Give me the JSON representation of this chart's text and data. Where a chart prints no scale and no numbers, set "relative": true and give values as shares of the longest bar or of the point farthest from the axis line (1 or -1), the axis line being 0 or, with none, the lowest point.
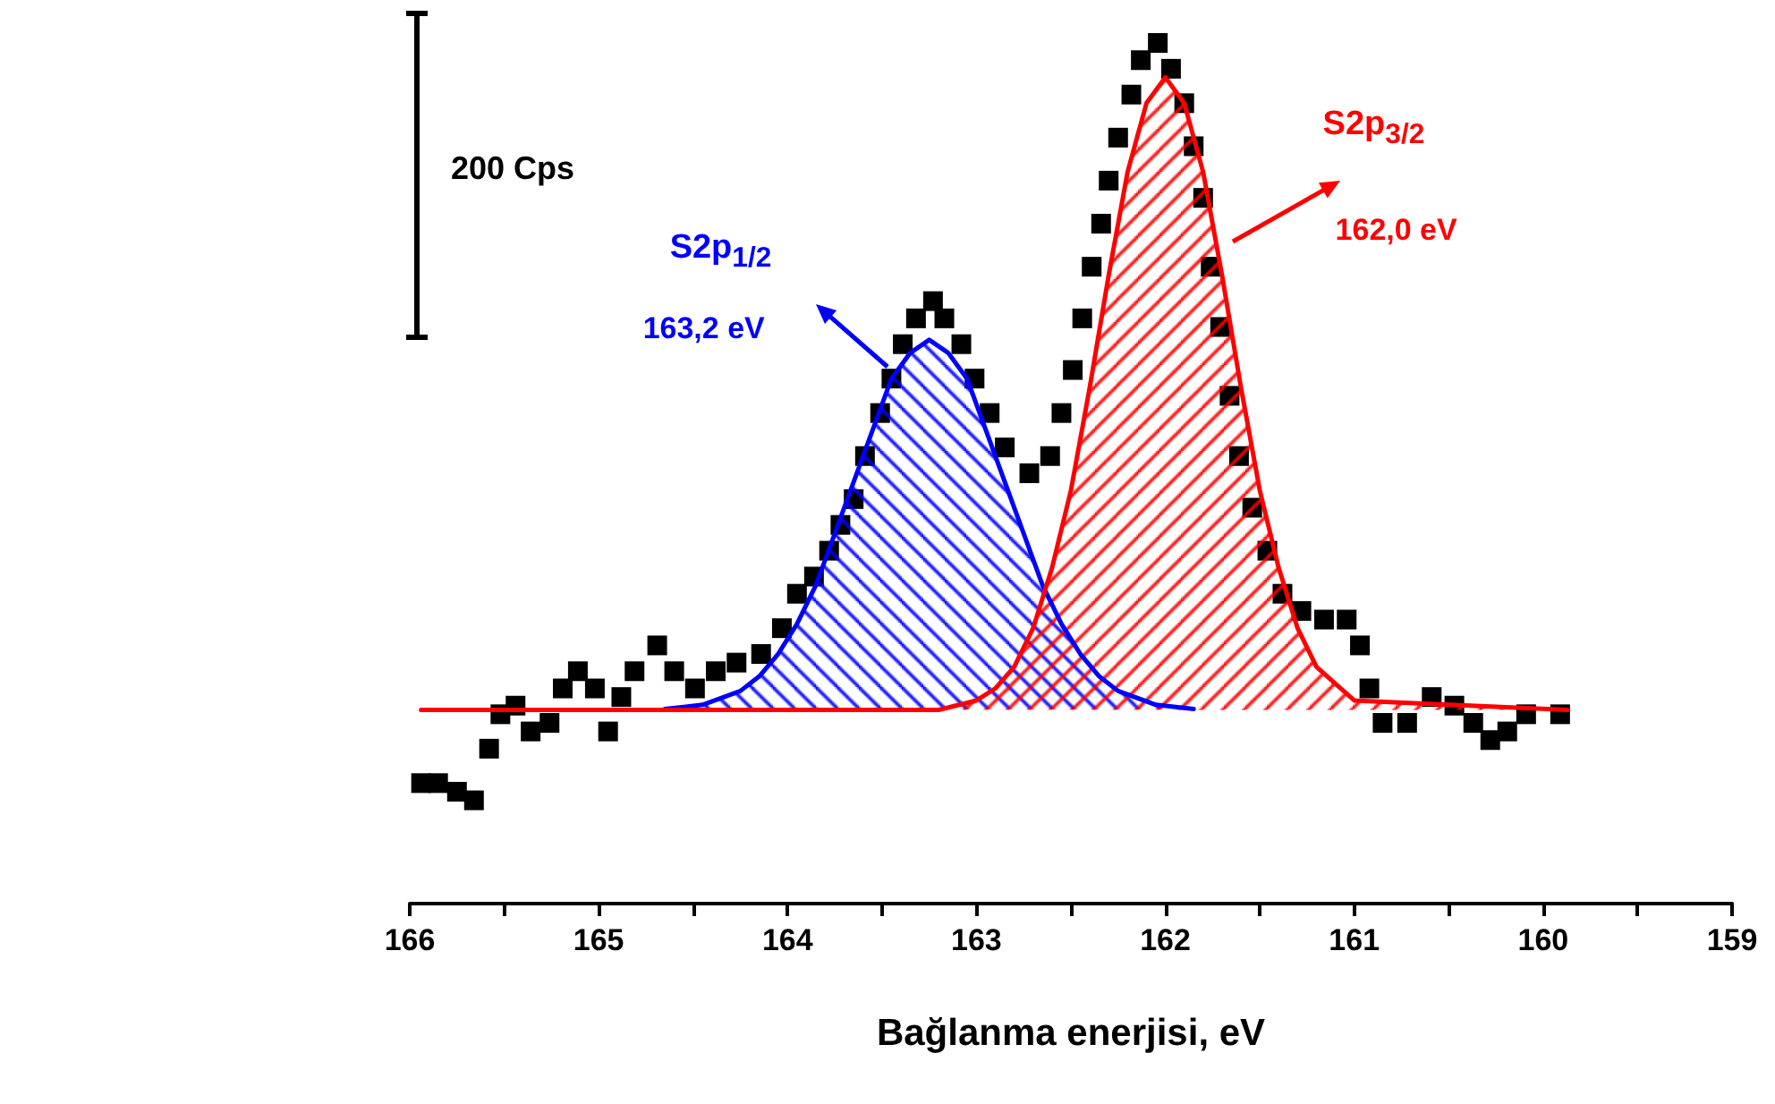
{
  "chart_data": {
    "type": "scatter",
    "xlabel": "Bağlanma enerjisi, eV",
    "relative": true,
    "marker": "square",
    "xlim": [
      166,
      159
    ],
    "xticks": [
      166,
      {
        "value": 165.5,
        "label": null
      },
      165,
      {
        "value": 164.5,
        "label": null
      },
      164,
      {
        "value": 163.5,
        "label": null
      },
      163,
      {
        "value": 162.5,
        "label": null
      },
      162,
      {
        "value": 161.5,
        "label": null
      },
      161,
      {
        "value": 160.5,
        "label": null
      },
      160,
      {
        "value": 159.5,
        "label": null
      },
      159
    ],
    "annotations": [
      "200 Cps",
      "163,2 eV",
      "162,0 eV"
    ],
    "series": [
      {
        "color": "#000000",
        "x": [
          165.94,
          165.85,
          165.75,
          165.66,
          165.58,
          165.52,
          165.44,
          165.36,
          165.26,
          165.19,
          165.11,
          165.02,
          164.95,
          164.88,
          164.81,
          164.69,
          164.6,
          164.49,
          164.38,
          164.27,
          164.14,
          164.03,
          163.95,
          163.86,
          163.78,
          163.72,
          163.65,
          163.59,
          163.51,
          163.45,
          163.39,
          163.32,
          163.23,
          163.17,
          163.08,
          163.01,
          162.93,
          162.85,
          162.72,
          162.61,
          162.55,
          162.49,
          162.44,
          162.39,
          162.34,
          162.3,
          162.25,
          162.18,
          162.13,
          162.04,
          161.97,
          161.9,
          161.85,
          161.8,
          161.76,
          161.71,
          161.66,
          161.61,
          161.54,
          161.46,
          161.38,
          161.28,
          161.16,
          161.04,
          160.97,
          160.92,
          160.85,
          160.72,
          160.59,
          160.47,
          160.37,
          160.28,
          160.19,
          160.09,
          159.91
        ],
        "values": [
          0.14,
          0.14,
          0.13,
          0.12,
          0.18,
          0.22,
          0.23,
          0.2,
          0.21,
          0.25,
          0.27,
          0.25,
          0.2,
          0.24,
          0.27,
          0.3,
          0.27,
          0.25,
          0.27,
          0.28,
          0.29,
          0.32,
          0.36,
          0.38,
          0.41,
          0.44,
          0.47,
          0.52,
          0.57,
          0.61,
          0.65,
          0.68,
          0.7,
          0.68,
          0.65,
          0.61,
          0.57,
          0.53,
          0.5,
          0.52,
          0.57,
          0.62,
          0.68,
          0.74,
          0.79,
          0.84,
          0.89,
          0.94,
          0.98,
          1.0,
          0.97,
          0.93,
          0.88,
          0.82,
          0.74,
          0.67,
          0.59,
          0.52,
          0.46,
          0.41,
          0.36,
          0.34,
          0.33,
          0.33,
          0.3,
          0.25,
          0.21,
          0.21,
          0.24,
          0.23,
          0.21,
          0.19,
          0.2,
          0.22,
          0.22
        ]
      },
      {
        "type": "area",
        "name": "S2p$_{1/2}$",
        "marker": "none",
        "color": "#0000ff",
        "x": [
          164.65,
          164.45,
          164.25,
          164.15,
          164.05,
          163.95,
          163.85,
          163.75,
          163.65,
          163.55,
          163.45,
          163.35,
          163.25,
          163.15,
          163.05,
          162.95,
          162.85,
          162.75,
          162.65,
          162.55,
          162.45,
          162.35,
          162.25,
          162.05,
          161.85
        ],
        "values": [
          0.226,
          0.231,
          0.247,
          0.264,
          0.29,
          0.325,
          0.37,
          0.43,
          0.49,
          0.55,
          0.61,
          0.64,
          0.655,
          0.64,
          0.61,
          0.55,
          0.49,
          0.43,
          0.37,
          0.325,
          0.29,
          0.264,
          0.247,
          0.231,
          0.226
        ]
      },
      {
        "type": "area",
        "name": "S2p$_{3/2}$",
        "marker": "none",
        "color": "#ff0000",
        "x": [
          165.94,
          163.2,
          163.0,
          162.9,
          162.8,
          162.7,
          162.6,
          162.5,
          162.4,
          162.3,
          162.2,
          162.1,
          162.0,
          161.9,
          161.8,
          161.7,
          161.6,
          161.5,
          161.4,
          161.3,
          161.2,
          161.0,
          159.87
        ],
        "values": [
          0.225,
          0.225,
          0.236,
          0.25,
          0.275,
          0.32,
          0.39,
          0.48,
          0.6,
          0.73,
          0.85,
          0.93,
          0.96,
          0.93,
          0.85,
          0.73,
          0.6,
          0.48,
          0.39,
          0.32,
          0.275,
          0.236,
          0.225
        ]
      }
    ]
  }
}
